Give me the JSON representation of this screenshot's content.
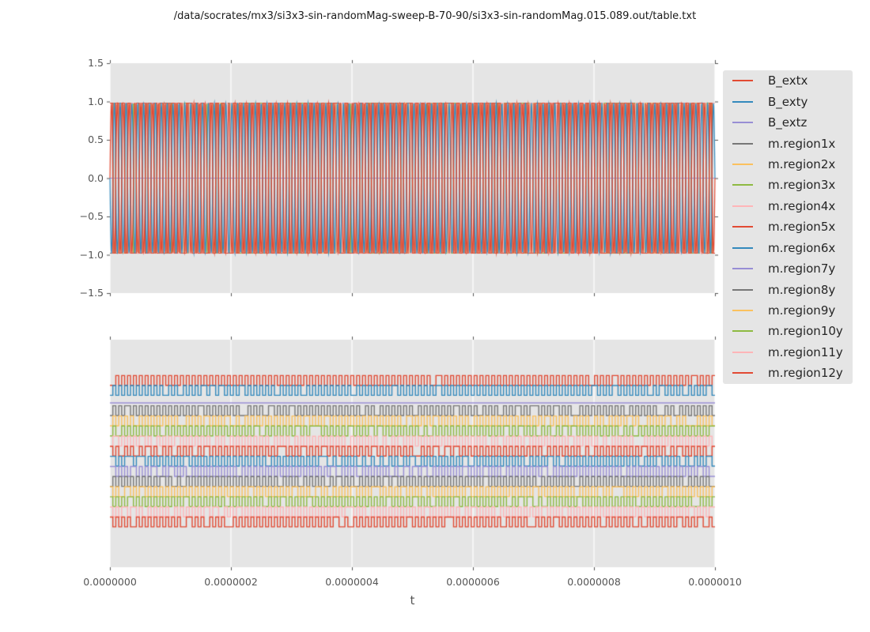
{
  "chart_data": {
    "type": "line",
    "title": "/data/socrates/mx3/si3x3-sin-randomMag-sweep-B-70-90/si3x3-sin-randomMag.015.089.out/table.txt",
    "xlabel": "t",
    "x_range": [
      0,
      1e-06
    ],
    "x_tick_labels": [
      "0.0000000",
      "0.0000002",
      "0.0000004",
      "0.0000006",
      "0.0000008",
      "0.0000010"
    ],
    "grid": "vertical-only",
    "plot_background": "#e5e5e5",
    "gridline_color": "#ffffff",
    "tick_color": "#555555",
    "cycles": 103,
    "legend": [
      {
        "label": "B_extx",
        "color": "#e24a33"
      },
      {
        "label": "B_exty",
        "color": "#348abd"
      },
      {
        "label": "B_extz",
        "color": "#988ed5"
      },
      {
        "label": "m.region1x",
        "color": "#777777"
      },
      {
        "label": "m.region2x",
        "color": "#fbc15e"
      },
      {
        "label": "m.region3x",
        "color": "#8eba42"
      },
      {
        "label": "m.region4x",
        "color": "#ffb5b8"
      },
      {
        "label": "m.region5x",
        "color": "#e24a33"
      },
      {
        "label": "m.region6x",
        "color": "#348abd"
      },
      {
        "label": "m.region7y",
        "color": "#988ed5"
      },
      {
        "label": "m.region8y",
        "color": "#777777"
      },
      {
        "label": "m.region9y",
        "color": "#fbc15e"
      },
      {
        "label": "m.region10y",
        "color": "#8eba42"
      },
      {
        "label": "m.region11y",
        "color": "#ffb5b8"
      },
      {
        "label": "m.region12y",
        "color": "#e24a33"
      }
    ],
    "top_plot": {
      "ylim": [
        -1.5,
        1.5
      ],
      "y_tick_labels": [
        "1.5",
        "1.0",
        "0.5",
        "0.0",
        "−0.5",
        "−1.0",
        "−1.5"
      ],
      "y_ticks": [
        1.5,
        1.0,
        0.5,
        0.0,
        -0.5,
        -1.0,
        -1.5
      ],
      "series": [
        {
          "label": "B_extx",
          "color": "#e24a33",
          "wave": "sin",
          "amplitude": 0.985,
          "phase": 0.0
        },
        {
          "label": "B_exty",
          "color": "#348abd",
          "wave": "sin",
          "amplitude": 0.985,
          "phase": 0.5
        },
        {
          "label": "B_extz",
          "color": "#988ed5",
          "wave": "flat",
          "value": 0.0
        },
        {
          "label": "m.region1x",
          "color": "#777777",
          "wave": "square",
          "amplitude": 0.98,
          "seed": 11
        },
        {
          "label": "m.region2x",
          "color": "#fbc15e",
          "wave": "square",
          "amplitude": 0.98,
          "seed": 22
        },
        {
          "label": "m.region3x",
          "color": "#8eba42",
          "wave": "square",
          "amplitude": 0.98,
          "seed": 33
        },
        {
          "label": "m.region4x",
          "color": "#ffb5b8",
          "wave": "square",
          "amplitude": 0.98,
          "seed": 44
        },
        {
          "label": "m.region5x",
          "color": "#e24a33",
          "wave": "square",
          "amplitude": 0.98,
          "seed": 55
        },
        {
          "label": "m.region6x",
          "color": "#348abd",
          "wave": "square",
          "amplitude": 0.98,
          "seed": 66
        },
        {
          "label": "m.region7y",
          "color": "#988ed5",
          "wave": "square",
          "amplitude": 0.98,
          "seed": 77
        },
        {
          "label": "m.region8y",
          "color": "#777777",
          "wave": "square",
          "amplitude": 0.98,
          "seed": 88
        },
        {
          "label": "m.region9y",
          "color": "#fbc15e",
          "wave": "square",
          "amplitude": 0.98,
          "seed": 99
        },
        {
          "label": "m.region10y",
          "color": "#8eba42",
          "wave": "square",
          "amplitude": 0.98,
          "seed": 110
        },
        {
          "label": "m.region11y",
          "color": "#ffb5b8",
          "wave": "square",
          "amplitude": 0.98,
          "seed": 121
        },
        {
          "label": "m.region12y",
          "color": "#e24a33",
          "wave": "square",
          "amplitude": 0.98,
          "seed": 132
        }
      ]
    },
    "bottom_plot": {
      "y_tick_labels": [],
      "band_amp_frac": 0.0215,
      "series": [
        {
          "label": "B_extx",
          "color": "#e24a33",
          "wave": "square",
          "offset_frac": 0.179,
          "seed": 1,
          "hold": 0.03
        },
        {
          "label": "B_exty",
          "color": "#348abd",
          "wave": "square",
          "offset_frac": 0.223,
          "seed": 2,
          "hold": 0.06
        },
        {
          "label": "B_extz",
          "color": "#988ed5",
          "wave": "flat",
          "offset_frac": 0.278
        },
        {
          "label": "m.region1x",
          "color": "#777777",
          "wave": "square",
          "offset_frac": 0.312,
          "seed": 11,
          "hold": 0.1
        },
        {
          "label": "m.region2x",
          "color": "#fbc15e",
          "wave": "square",
          "offset_frac": 0.357,
          "seed": 22,
          "hold": 0.1
        },
        {
          "label": "m.region3x",
          "color": "#8eba42",
          "wave": "square",
          "offset_frac": 0.401,
          "seed": 33,
          "hold": 0.1
        },
        {
          "label": "m.region4x",
          "color": "#ffb5b8",
          "wave": "square",
          "offset_frac": 0.446,
          "seed": 44,
          "hold": 0.1
        },
        {
          "label": "m.region5x",
          "color": "#e24a33",
          "wave": "square",
          "offset_frac": 0.49,
          "seed": 55,
          "hold": 0.1
        },
        {
          "label": "m.region6x",
          "color": "#348abd",
          "wave": "square",
          "offset_frac": 0.534,
          "seed": 66,
          "hold": 0.1
        },
        {
          "label": "m.region7y",
          "color": "#988ed5",
          "wave": "square",
          "offset_frac": 0.579,
          "seed": 77,
          "hold": 0.1
        },
        {
          "label": "m.region8y",
          "color": "#777777",
          "wave": "square",
          "offset_frac": 0.623,
          "seed": 88,
          "hold": 0.1
        },
        {
          "label": "m.region9y",
          "color": "#fbc15e",
          "wave": "square",
          "offset_frac": 0.668,
          "seed": 99,
          "hold": 0.1
        },
        {
          "label": "m.region10y",
          "color": "#8eba42",
          "wave": "square",
          "offset_frac": 0.712,
          "seed": 110,
          "hold": 0.1
        },
        {
          "label": "m.region11y",
          "color": "#ffb5b8",
          "wave": "square",
          "offset_frac": 0.757,
          "seed": 121,
          "hold": 0.1
        },
        {
          "label": "m.region12y",
          "color": "#e24a33",
          "wave": "square",
          "offset_frac": 0.801,
          "seed": 132,
          "hold": 0.1
        }
      ]
    }
  }
}
